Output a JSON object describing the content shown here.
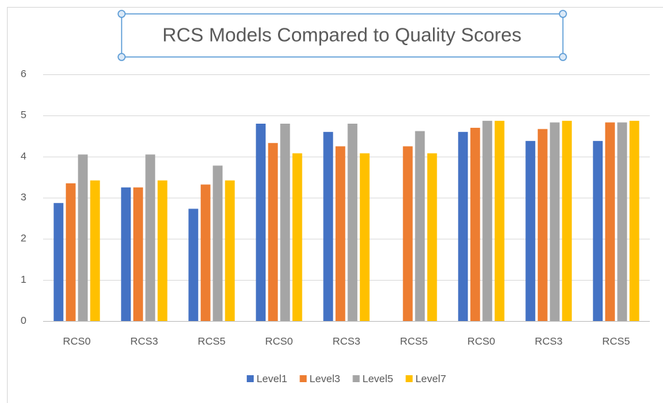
{
  "chart_data": {
    "type": "bar",
    "title": "RCS Models Compared to Quality Scores",
    "categories": [
      "RCS0",
      "RCS3",
      "RCS5",
      "RCS0",
      "RCS3",
      "RCS5",
      "RCS0",
      "RCS3",
      "RCS5"
    ],
    "series": [
      {
        "name": "Level1",
        "color": "#4472c4",
        "values": [
          2.87,
          3.25,
          2.73,
          4.8,
          4.6,
          null,
          4.6,
          4.38,
          4.38
        ]
      },
      {
        "name": "Level3",
        "color": "#ed7d31",
        "values": [
          3.35,
          3.25,
          3.32,
          4.33,
          4.25,
          4.25,
          4.7,
          4.67,
          4.83
        ]
      },
      {
        "name": "Level5",
        "color": "#a5a5a5",
        "values": [
          4.05,
          4.05,
          3.78,
          4.8,
          4.8,
          4.62,
          4.87,
          4.83,
          4.83
        ]
      },
      {
        "name": "Level7",
        "color": "#ffc000",
        "values": [
          3.42,
          3.42,
          3.42,
          4.08,
          4.08,
          4.08,
          4.87,
          4.87,
          4.87
        ]
      }
    ],
    "ylim": [
      0,
      6
    ],
    "yticks": [
      0,
      1,
      2,
      3,
      4,
      5,
      6
    ],
    "grid": true,
    "legend": "bottom"
  }
}
